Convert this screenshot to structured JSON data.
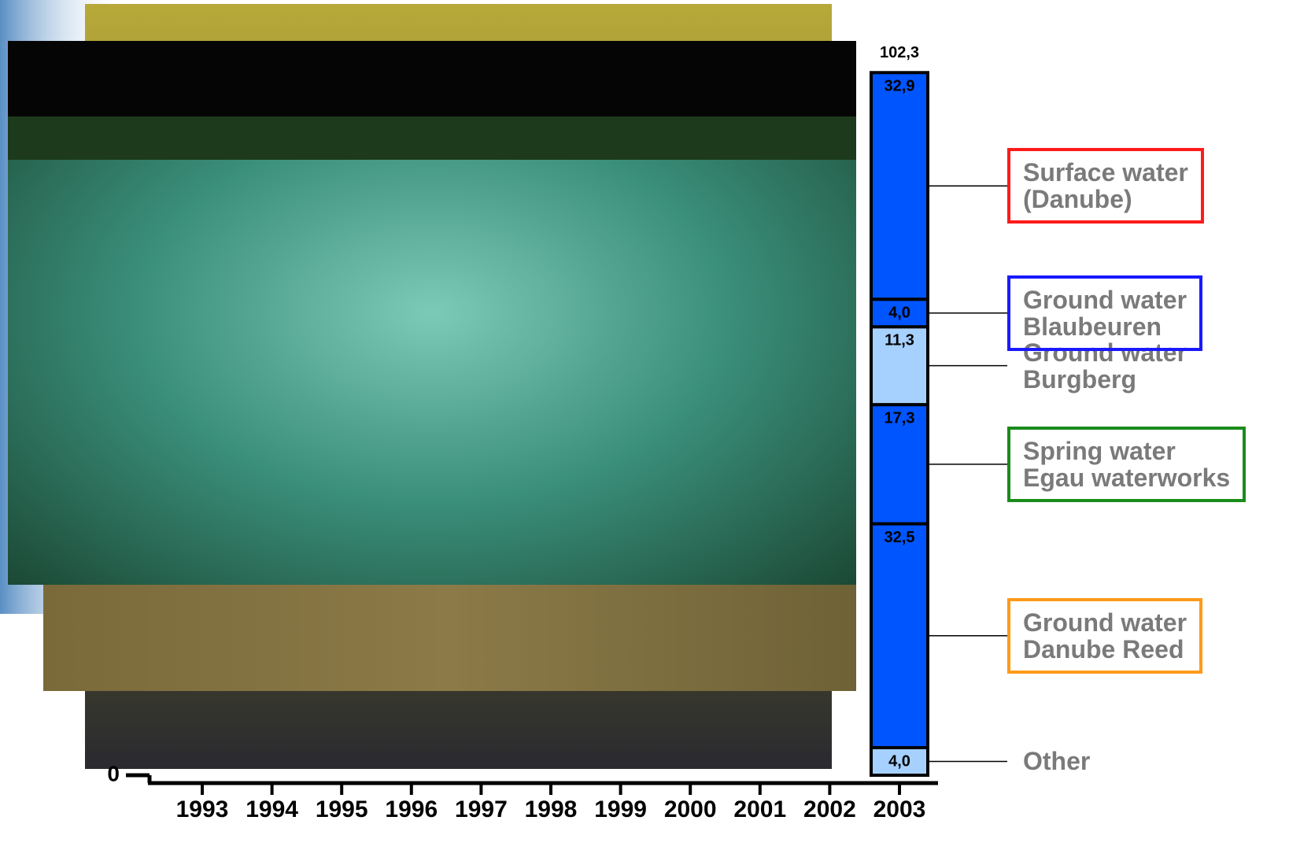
{
  "chart_data": {
    "type": "stacked_bar",
    "categories": [
      "1993",
      "1994",
      "1995",
      "1996",
      "1997",
      "1998",
      "1999",
      "2000",
      "2001",
      "2002",
      "2003"
    ],
    "ylim": [
      0,
      105
    ],
    "yticks": [
      0
    ],
    "series": [
      {
        "name": "Surface water\n(Danube)",
        "color": "#0055ff",
        "label_border": "#ff1a1a",
        "values": [
          null,
          null,
          null,
          null,
          null,
          null,
          null,
          null,
          null,
          null,
          32.9
        ],
        "value_labels": [
          null,
          null,
          null,
          null,
          null,
          null,
          null,
          null,
          null,
          null,
          "32,9"
        ]
      },
      {
        "name": "Ground water\nBlaubeuren",
        "color": "#0055ff",
        "label_border": "#1a1aff",
        "values": [
          null,
          null,
          null,
          null,
          null,
          null,
          null,
          null,
          null,
          null,
          4.0
        ],
        "value_labels": [
          null,
          null,
          null,
          null,
          null,
          null,
          null,
          null,
          null,
          null,
          "4,0"
        ]
      },
      {
        "name": "Ground water\nBurgberg",
        "color": "#a6d1ff",
        "label_border": null,
        "values": [
          null,
          null,
          null,
          null,
          null,
          null,
          null,
          null,
          null,
          null,
          11.3
        ],
        "value_labels": [
          null,
          null,
          null,
          null,
          null,
          null,
          null,
          null,
          null,
          null,
          "11,3"
        ]
      },
      {
        "name": "Spring water\nEgau waterworks",
        "color": "#0055ff",
        "label_border": "#1a8c1a",
        "values": [
          null,
          null,
          null,
          null,
          null,
          null,
          null,
          null,
          null,
          null,
          17.3
        ],
        "value_labels": [
          null,
          null,
          null,
          null,
          null,
          null,
          null,
          null,
          null,
          null,
          "17,3"
        ]
      },
      {
        "name": "Ground water\nDanube Reed",
        "color": "#0055ff",
        "label_border": "#ff9a1a",
        "values": [
          null,
          null,
          null,
          null,
          null,
          null,
          null,
          null,
          null,
          null,
          32.5
        ],
        "value_labels": [
          null,
          null,
          null,
          null,
          null,
          null,
          null,
          null,
          null,
          null,
          "32,5"
        ]
      },
      {
        "name": "Other",
        "color": "#a6d1ff",
        "label_border": null,
        "values": [
          null,
          null,
          null,
          null,
          null,
          null,
          null,
          null,
          null,
          null,
          4.0
        ],
        "value_labels": [
          null,
          null,
          null,
          null,
          null,
          null,
          null,
          null,
          null,
          null,
          "4,0"
        ]
      }
    ],
    "totals": [
      null,
      null,
      null,
      null,
      null,
      null,
      null,
      null,
      null,
      null,
      102.3
    ],
    "total_labels": [
      null,
      null,
      null,
      null,
      null,
      null,
      null,
      null,
      null,
      null,
      "102,3"
    ]
  }
}
